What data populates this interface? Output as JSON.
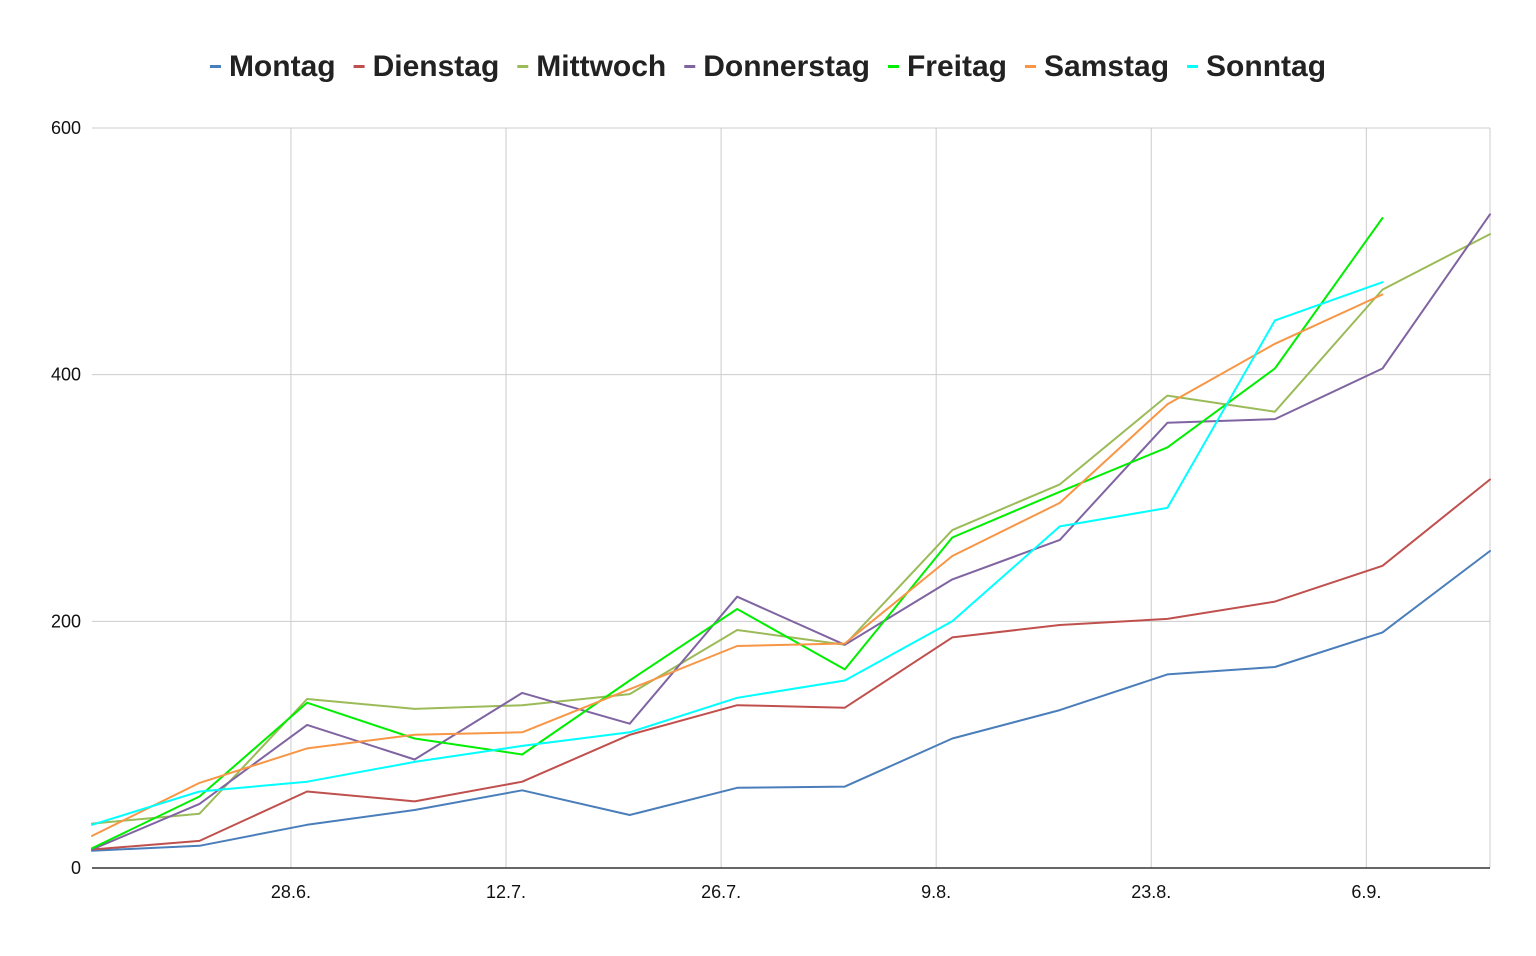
{
  "chart_data": {
    "type": "line",
    "title": "",
    "xlabel": "",
    "ylabel": "",
    "legend_position": "top",
    "grid": true,
    "ylim": [
      0,
      600
    ],
    "y_ticks": [
      "0",
      "200",
      "400",
      "600"
    ],
    "x_ticks": [
      {
        "label": "28.6.",
        "x": 2
      },
      {
        "label": "12.7.",
        "x": 4
      },
      {
        "label": "26.7.",
        "x": 6
      },
      {
        "label": "9.8.",
        "x": 8
      },
      {
        "label": "23.8.",
        "x": 10
      },
      {
        "label": "6.9.",
        "x": 12
      }
    ],
    "xlim": [
      0.15,
      13.15
    ],
    "series": [
      {
        "name": "Montag",
        "color": "#4a7ebb",
        "x": [
          0.15,
          1.15,
          2.15,
          3.15,
          4.15,
          5.15,
          6.15,
          7.15,
          8.15,
          9.15,
          10.15,
          11.15,
          12.15,
          13.15
        ],
        "values": [
          14,
          18,
          35,
          47,
          63,
          43,
          65,
          66,
          105,
          128,
          157,
          163,
          191,
          257
        ]
      },
      {
        "name": "Dienstag",
        "color": "#c0504d",
        "x": [
          0.15,
          1.15,
          2.15,
          3.15,
          4.15,
          5.15,
          6.15,
          7.15,
          8.15,
          9.15,
          10.15,
          11.15,
          12.15,
          13.15
        ],
        "values": [
          15,
          22,
          62,
          54,
          70,
          108,
          132,
          130,
          187,
          197,
          202,
          216,
          245,
          315
        ]
      },
      {
        "name": "Mittwoch",
        "color": "#9bbb59",
        "x": [
          0.15,
          1.15,
          2.15,
          3.15,
          4.15,
          5.15,
          6.15,
          7.15,
          8.15,
          9.15,
          10.15,
          11.15,
          12.15,
          13.15
        ],
        "values": [
          36,
          44,
          137,
          129,
          132,
          141,
          193,
          181,
          274,
          311,
          383,
          370,
          469,
          514
        ]
      },
      {
        "name": "Donnerstag",
        "color": "#8064a2",
        "x": [
          0.15,
          1.15,
          2.15,
          3.15,
          4.15,
          5.15,
          6.15,
          7.15,
          8.15,
          9.15,
          10.15,
          11.15,
          12.15,
          13.15
        ],
        "values": [
          15,
          52,
          116,
          88,
          142,
          117,
          220,
          181,
          234,
          266,
          361,
          364,
          405,
          530
        ]
      },
      {
        "name": "Freitag",
        "color": "#00ee00",
        "x": [
          0.15,
          1.15,
          2.15,
          3.15,
          4.15,
          5.15,
          6.15,
          7.15,
          8.15,
          9.15,
          10.15,
          11.15,
          12.15
        ],
        "values": [
          16,
          58,
          134,
          105,
          92,
          152,
          210,
          161,
          268,
          305,
          341,
          405,
          527
        ]
      },
      {
        "name": "Samstag",
        "color": "#f79646",
        "x": [
          0.15,
          1.15,
          2.15,
          3.15,
          4.15,
          5.15,
          6.15,
          7.15,
          8.15,
          9.15,
          10.15,
          11.15,
          12.15
        ],
        "values": [
          26,
          69,
          97,
          108,
          110,
          145,
          180,
          182,
          253,
          296,
          376,
          425,
          465
        ]
      },
      {
        "name": "Sonntag",
        "color": "#00ffff",
        "x": [
          0.15,
          1.15,
          2.15,
          3.15,
          4.15,
          5.15,
          6.15,
          7.15,
          8.15,
          9.15,
          10.15,
          11.15,
          12.15
        ],
        "values": [
          35,
          62,
          70,
          86,
          99,
          110,
          138,
          152,
          200,
          277,
          292,
          444,
          475
        ]
      }
    ]
  }
}
